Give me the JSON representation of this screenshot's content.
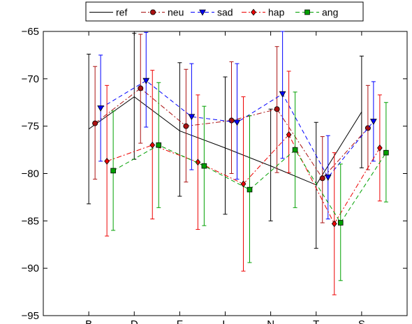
{
  "chart_data": {
    "type": "line",
    "categories": [
      "B",
      "D",
      "F",
      "L",
      "N",
      "T",
      "S"
    ],
    "ylim": [
      -95,
      -65
    ],
    "yticks": [
      -95,
      -90,
      -85,
      -80,
      -75,
      -70,
      -65
    ],
    "legend_position": "top-center",
    "grid": false,
    "series": [
      {
        "name": "ref",
        "color": "#000000",
        "marker": "none",
        "dash": "solid",
        "values": [
          -75.3,
          -71.9,
          -75.5,
          -77.3,
          -79.2,
          -81.2,
          -73.5
        ],
        "err_low": [
          -83.2,
          -78.5,
          -82.4,
          -84.3,
          -85.0,
          -87.9,
          -79.4
        ],
        "err_high": [
          -67.4,
          -65.2,
          -68.3,
          -69.8,
          -73.2,
          -74.6,
          -67.6
        ]
      },
      {
        "name": "neu",
        "color": "#aa1111",
        "marker": "circle",
        "dash": "dashdot",
        "values": [
          -74.7,
          -71.0,
          -75.0,
          -74.4,
          -73.2,
          -80.5,
          -75.2
        ],
        "err_low": [
          -80.6,
          -76.8,
          -80.9,
          -80.0,
          -79.9,
          -85.2,
          -79.6
        ],
        "err_high": [
          -68.7,
          -65.3,
          -69.0,
          -68.2,
          -66.6,
          -76.1,
          -70.7
        ]
      },
      {
        "name": "sad",
        "color": "#0000ff",
        "marker": "triangle-down",
        "dash": "dashed",
        "values": [
          -73.1,
          -70.2,
          -74.0,
          -74.6,
          -71.6,
          -80.4,
          -74.5
        ],
        "err_low": [
          -78.7,
          -75.1,
          -79.6,
          -80.6,
          -78.4,
          -84.8,
          -78.7
        ],
        "err_high": [
          -67.5,
          -65.1,
          -68.4,
          -68.4,
          -65.0,
          -76.0,
          -70.3
        ]
      },
      {
        "name": "hap",
        "color": "#ee0000",
        "marker": "diamond",
        "dash": "dashdot",
        "values": [
          -78.7,
          -77.0,
          -78.8,
          -81.1,
          -75.9,
          -85.3,
          -77.3
        ],
        "err_low": [
          -86.6,
          -84.8,
          -85.9,
          -90.3,
          -79.9,
          -92.8,
          -82.9
        ],
        "err_high": [
          -70.7,
          -69.1,
          -71.7,
          -71.9,
          -69.2,
          -77.8,
          -71.7
        ]
      },
      {
        "name": "ang",
        "color": "#00a000",
        "marker": "square",
        "dash": "dashed",
        "values": [
          -79.7,
          -77.0,
          -79.2,
          -81.7,
          -77.5,
          -85.2,
          -77.8
        ],
        "err_low": [
          -86.0,
          -83.6,
          -85.5,
          -89.4,
          -83.6,
          -91.3,
          -83.0
        ],
        "err_high": [
          -73.4,
          -70.4,
          -72.9,
          -73.9,
          -71.4,
          -79.0,
          -72.5
        ]
      }
    ]
  }
}
